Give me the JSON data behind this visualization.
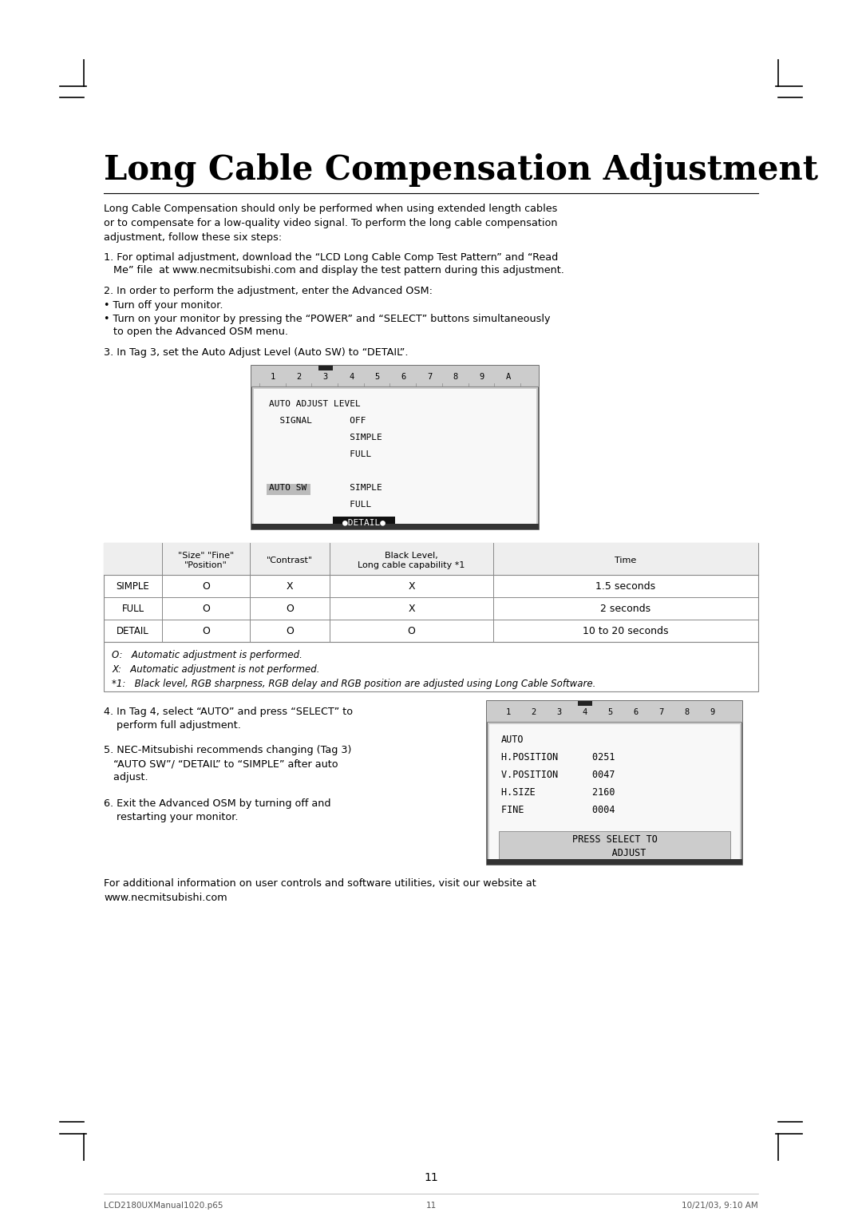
{
  "title": "Long Cable Compensation Adjustment",
  "bg_color": "#ffffff",
  "text_color": "#000000",
  "page_number": "11",
  "footer_left": "LCD2180UXManual1020.p65",
  "footer_center": "11",
  "footer_right": "10/21/03, 9:10 AM",
  "intro_text": "Long Cable Compensation should only be performed when using extended length cables\nor to compensate for a low-quality video signal. To perform the long cable compensation\nadjustment, follow these six steps:",
  "step1a": "1. For optimal adjustment, download the “LCD Long Cable Comp Test Pattern” and “Read",
  "step1b": "   Me” file  at www.necmitsubishi.com and display the test pattern during this adjustment.",
  "step2_head": "2. In order to perform the adjustment, enter the Advanced OSM:",
  "bullet1": "• Turn off your monitor.",
  "bullet2": "• Turn on your monitor by pressing the “POWER” and “SELECT” buttons simultaneously",
  "bullet2b": "   to open the Advanced OSM menu.",
  "step3": "3. In Tag 3, set the Auto Adjust Level (Auto SW) to “DETAIL”.",
  "step4a": "4. In Tag 4, select “AUTO” and press “SELECT” to",
  "step4b": "    perform full adjustment.",
  "step5a": "5. NEC-Mitsubishi recommends changing (Tag 3)",
  "step5b": "   “AUTO SW”/ “DETAIL” to “SIMPLE” after auto",
  "step5c": "   adjust.",
  "step6a": "6. Exit the Advanced OSM by turning off and",
  "step6b": "    restarting your monitor.",
  "footer_text_a": "For additional information on user controls and software utilities, visit our website at",
  "footer_text_b": "www.necmitsubishi.com",
  "note_O": "O:   Automatic adjustment is performed.",
  "note_X": "X:   Automatic adjustment is not performed.",
  "note_star1": "*1:   Black level, RGB sharpness, RGB delay and RGB position are adjusted using Long Cable Software.",
  "osm1_tab_label": "1  2  3  4  5  6  7  8  9  A",
  "osm1_lines": [
    "AUTO ADJUST LEVEL",
    "  SIGNAL       OFF",
    "               SIMPLE",
    "               FULL",
    "",
    "AUTO SW        SIMPLE",
    "               FULL"
  ],
  "osm1_detail": "●DETAIL●",
  "osm2_tab_label": "1  2  3  4  5  6  7  8  9",
  "osm2_lines": [
    "AUTO",
    "H.POSITION      0251",
    "V.POSITION      0047",
    "H.SIZE          2160",
    "FINE            0004"
  ],
  "osm2_btn": "PRESS SELECT TO\n     ADJUST",
  "table_col0_header": "",
  "table_headers": [
    "\"Size\" \"Fine\"\n\"Position\"",
    "\"Contrast\"",
    "Black Level,\nLong cable capability *1",
    "Time"
  ],
  "table_rows": [
    [
      "SIMPLE",
      "O",
      "X",
      "X",
      "1.5 seconds"
    ],
    [
      "FULL",
      "O",
      "O",
      "X",
      "2 seconds"
    ],
    [
      "DETAIL",
      "O",
      "O",
      "O",
      "10 to 20 seconds"
    ]
  ]
}
